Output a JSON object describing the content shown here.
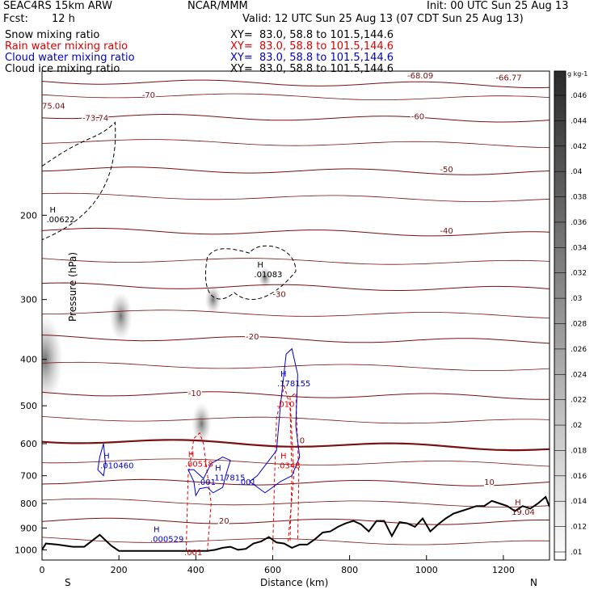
{
  "header": {
    "model": "SEAC4RS 15km ARW",
    "center": "NCAR/MMM",
    "init": "Init: 00 UTC Sun 25 Aug 13",
    "fcst_label": "Fcst:",
    "fcst_value": "12 h",
    "valid": "Valid: 12 UTC Sun 25 Aug 13 (07 CDT Sun 25 Aug 13)"
  },
  "fields": [
    {
      "label": "Snow mixing ratio",
      "xy": "XY=  83.0, 58.8 to 101.5,144.6",
      "color": "#000000"
    },
    {
      "label": "Rain water mixing ratio",
      "xy": "XY=  83.0, 58.8 to 101.5,144.6",
      "color": "#e00000"
    },
    {
      "label": "Cloud water mixing ratio",
      "xy": "XY=  83.0, 58.8 to 101.5,144.6",
      "color": "#0000cc"
    },
    {
      "label": "Cloud ice mixing ratio",
      "xy": "XY=  83.0, 58.8 to 101.5,144.6",
      "color": "#000000"
    }
  ],
  "chart_data": {
    "type": "cross-section contour",
    "xlabel": "Distance (km)",
    "ylabel": "Pressure (hPa)",
    "xlim": [
      0,
      1320
    ],
    "ylim": [
      1050,
      100
    ],
    "y_log": true,
    "x_ticks": [
      0,
      200,
      400,
      600,
      800,
      1000,
      1200
    ],
    "y_ticks": [
      200,
      300,
      400,
      500,
      600,
      700,
      800,
      900,
      1000
    ],
    "x_end_labels": {
      "left": "S",
      "right": "N"
    },
    "temperature_isotherms": [
      {
        "t": -70,
        "p": 105
      },
      {
        "t": -60,
        "p": 124
      },
      {
        "t": -50,
        "p": 160
      },
      {
        "t": -40,
        "p": 215
      },
      {
        "t": -30,
        "p": 280
      },
      {
        "t": -20,
        "p": 360
      },
      {
        "t": -10,
        "p": 470
      },
      {
        "t": 0,
        "p": 590
      },
      {
        "t": 10,
        "p": 720
      },
      {
        "t": 20,
        "p": 868
      }
    ],
    "temperature_labels": [
      "-73.74",
      "-70",
      "-60",
      "-50",
      "-40",
      "-30",
      "-20",
      "-10",
      "0",
      "10",
      "20",
      "-66.77",
      "-68.09",
      "75.04",
      "19.04"
    ],
    "extrema": [
      {
        "type": "H",
        "value": ".00622",
        "x": 20,
        "p": 202,
        "field": "snow"
      },
      {
        "type": "H",
        "value": ".01083",
        "x": 560,
        "p": 263,
        "field": "snow"
      },
      {
        "type": "H",
        "value": ".178155",
        "x": 620,
        "p": 445,
        "field": "cloud water"
      },
      {
        "type": "H",
        "value": ".00518",
        "x": 380,
        "p": 655,
        "field": "rain water"
      },
      {
        "type": "H",
        "value": ".0348",
        "x": 620,
        "p": 660,
        "field": "rain water"
      },
      {
        "type": "H",
        "value": ".117815",
        "x": 450,
        "p": 700,
        "field": "cloud water"
      },
      {
        "type": "H",
        "value": ".010460",
        "x": 160,
        "p": 660,
        "field": "cloud water"
      },
      {
        "type": "H",
        "value": ".000529",
        "x": 290,
        "p": 940,
        "field": "cloud water"
      },
      {
        "type": "H",
        "value": "19.04",
        "x": 1230,
        "p": 825,
        "field": "temperature"
      }
    ],
    "contour_labels": [
      {
        "value": ".001",
        "field": "cloud water"
      },
      {
        "value": ".001",
        "field": "cloud water"
      },
      {
        "value": ".001",
        "field": "rain water"
      },
      {
        "value": ".010",
        "field": "rain water"
      }
    ],
    "terrain": {
      "x": [
        0,
        10,
        40,
        80,
        110,
        150,
        180,
        200,
        240,
        280,
        320,
        360,
        400,
        430,
        450,
        470,
        490,
        510,
        530,
        550,
        570,
        590,
        610,
        630,
        650,
        670,
        690,
        710,
        730,
        750,
        770,
        790,
        810,
        830,
        850,
        870,
        890,
        910,
        930,
        950,
        970,
        990,
        1010,
        1030,
        1050,
        1070,
        1090,
        1110,
        1130,
        1150,
        1170,
        1190,
        1210,
        1230,
        1250,
        1270,
        1290,
        1310,
        1320
      ],
      "p": [
        1000,
        970,
        975,
        985,
        985,
        930,
        980,
        1005,
        1005,
        1005,
        1005,
        1005,
        1005,
        1005,
        1000,
        990,
        985,
        1000,
        995,
        970,
        960,
        940,
        965,
        970,
        990,
        975,
        975,
        950,
        920,
        915,
        895,
        880,
        870,
        885,
        915,
        870,
        870,
        935,
        875,
        880,
        895,
        860,
        915,
        885,
        860,
        840,
        830,
        820,
        810,
        810,
        790,
        800,
        810,
        830,
        810,
        820,
        800,
        775,
        812
      ]
    },
    "colorbar": {
      "unit": "g kg-1",
      "ticks": [
        ".046",
        ".044",
        ".042",
        ".04",
        ".038",
        ".036",
        ".034",
        ".032",
        ".03",
        ".028",
        ".026",
        ".024",
        ".022",
        ".02",
        ".018",
        ".016",
        ".014",
        ".012",
        ".01"
      ]
    }
  }
}
